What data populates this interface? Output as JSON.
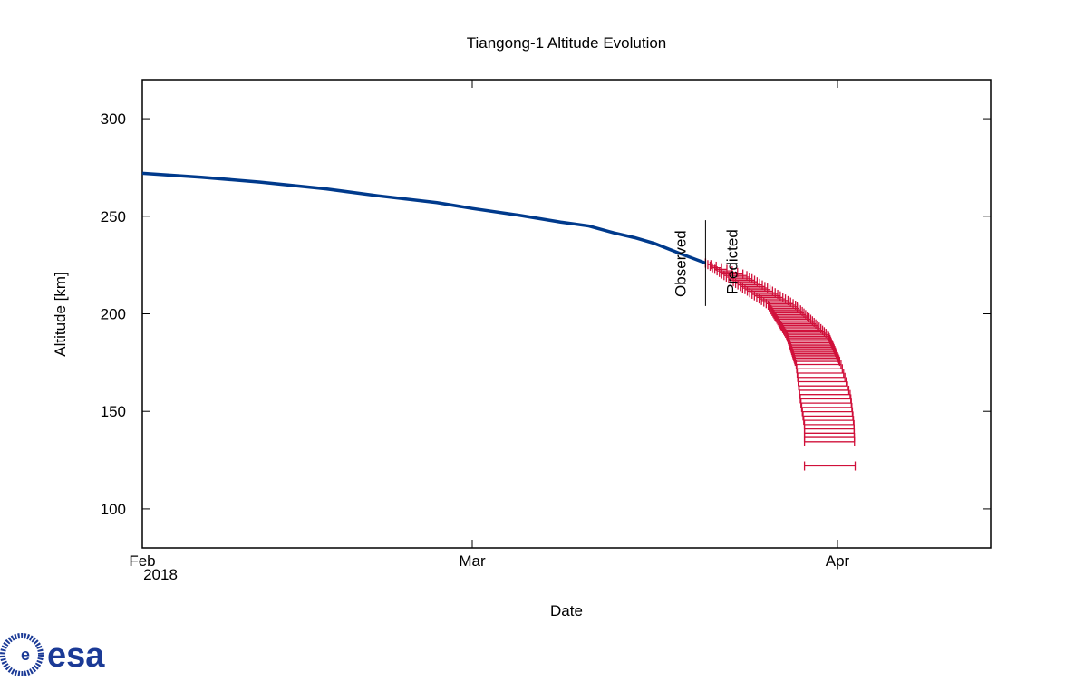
{
  "chart_data": {
    "type": "line",
    "title": "Tiangong-1 Altitude Evolution",
    "xlabel": "Date",
    "ylabel": "Altitude [km]",
    "xlim_days_since_feb1_2018": [
      0,
      72
    ],
    "ylim": [
      80,
      320
    ],
    "yticks": [
      100,
      150,
      200,
      250,
      300
    ],
    "xticks": [
      {
        "day": 0,
        "label": "Feb",
        "sublabel": "2018"
      },
      {
        "day": 28,
        "label": "Mar"
      },
      {
        "day": 59,
        "label": "Apr"
      }
    ],
    "colors": {
      "observed": "#003a8c",
      "predicted": "#d0103a",
      "marker": "#000000"
    },
    "observed": {
      "name": "Observed",
      "points": [
        [
          0,
          272
        ],
        [
          5,
          270
        ],
        [
          10,
          267.5
        ],
        [
          15.6,
          264
        ],
        [
          20,
          260.5
        ],
        [
          25,
          257
        ],
        [
          28,
          254
        ],
        [
          32,
          250.5
        ],
        [
          35.5,
          247
        ],
        [
          37.9,
          245
        ],
        [
          40,
          241.5
        ],
        [
          41.8,
          239
        ],
        [
          43.5,
          236
        ],
        [
          45.6,
          231
        ],
        [
          47.8,
          226
        ]
      ]
    },
    "predicted": {
      "name": "Predicted",
      "left_edge": [
        [
          226,
          47.8
        ],
        [
          215,
          50.5
        ],
        [
          204.6,
          53.1
        ],
        [
          189,
          54.7
        ],
        [
          174,
          55.5
        ],
        [
          158,
          55.8
        ],
        [
          143,
          56.2
        ],
        [
          122,
          56.2
        ]
      ],
      "right_edge": [
        [
          226,
          47.8
        ],
        [
          220,
          51.2
        ],
        [
          204.6,
          55.4
        ],
        [
          189,
          58.2
        ],
        [
          174,
          59.3
        ],
        [
          158,
          60.1
        ],
        [
          143,
          60.4
        ],
        [
          122,
          60.5
        ]
      ]
    },
    "separator": {
      "day": 47.8,
      "alt_range": [
        204,
        248
      ],
      "labels": [
        "Observed",
        "Predicted"
      ]
    }
  },
  "logo": "esa"
}
